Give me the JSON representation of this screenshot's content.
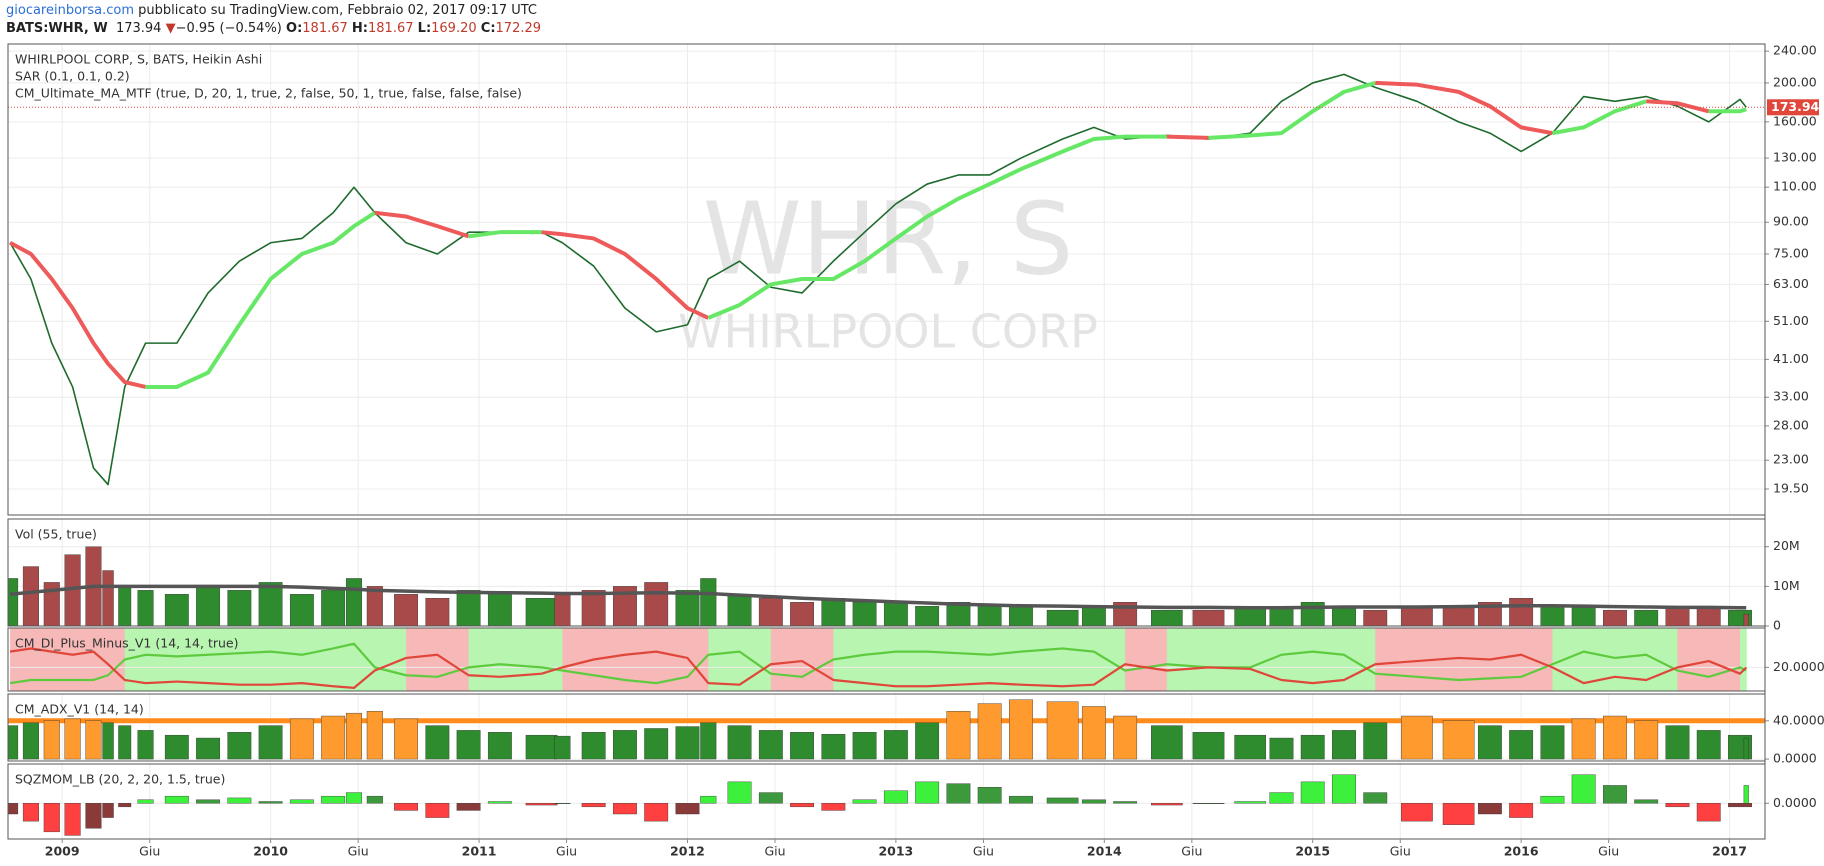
{
  "header": {
    "site": "giocareinborsa.com",
    "published": "pubblicato su TradingView.com, Febbraio 02, 2017 09:17 UTC",
    "symbol": "BATS:WHR, W",
    "price": "173.94",
    "arrow": "▼",
    "change": "−0.95 (−0.54%)",
    "open_label": "O:",
    "open": "181.67",
    "high_label": "H:",
    "high": "181.67",
    "low_label": "L:",
    "low": "169.20",
    "close_label": "C:",
    "close": "172.29"
  },
  "chart_data": {
    "type": "multi-pane",
    "x": [
      2008.75,
      2008.85,
      2008.95,
      2009.05,
      2009.15,
      2009.22,
      2009.3,
      2009.4,
      2009.55,
      2009.7,
      2009.85,
      2010.0,
      2010.15,
      2010.3,
      2010.4,
      2010.5,
      2010.65,
      2010.8,
      2010.95,
      2011.1,
      2011.3,
      2011.4,
      2011.55,
      2011.7,
      2011.85,
      2012.0,
      2012.1,
      2012.25,
      2012.4,
      2012.55,
      2012.7,
      2012.85,
      2013.0,
      2013.15,
      2013.3,
      2013.45,
      2013.6,
      2013.8,
      2013.95,
      2014.1,
      2014.3,
      2014.5,
      2014.7,
      2014.85,
      2015.0,
      2015.15,
      2015.3,
      2015.5,
      2015.7,
      2015.85,
      2016.0,
      2016.15,
      2016.3,
      2016.45,
      2016.6,
      2016.75,
      2016.9,
      2017.05,
      2017.08
    ],
    "xlim": [
      2008.74,
      2017.17
    ],
    "xticks": [
      2009,
      {
        "value": 2009.42,
        "label": "Giu"
      },
      2010,
      {
        "value": 2010.42,
        "label": "Giu"
      },
      2011,
      {
        "value": 2011.42,
        "label": "Giu"
      },
      2012,
      {
        "value": 2012.42,
        "label": "Giu"
      },
      2013,
      {
        "value": 2013.42,
        "label": "Giu"
      },
      2014,
      {
        "value": 2014.42,
        "label": "Giu"
      },
      2015,
      {
        "value": 2015.42,
        "label": "Giu"
      },
      2016,
      {
        "value": 2016.42,
        "label": "Giu"
      },
      2017
    ],
    "grid": true,
    "panes": [
      {
        "type": "line",
        "labels": [
          "WHIRLPOOL CORP, S, BATS, Heikin Ashi",
          "SAR (0.1, 0.1, 0.2)",
          "CM_Ultimate_MA_MTF (true, D, 20, 1, true, 2, false, 50, 1, true, false, false, false)"
        ],
        "watermark": [
          "WHR, S",
          "WHIRLPOOL CORP"
        ],
        "log": true,
        "ylim": [
          16.8,
          250
        ],
        "last_label": true,
        "last_color": "#e0463a",
        "yticks": [
          {
            "value": 19.5,
            "label": "19.50"
          },
          {
            "value": 23,
            "label": "23.00"
          },
          {
            "value": 28,
            "label": "28.00"
          },
          {
            "value": 33,
            "label": "33.00"
          },
          {
            "value": 41,
            "label": "41.00"
          },
          {
            "value": 51,
            "label": "51.00"
          },
          {
            "value": 63,
            "label": "63.00"
          },
          {
            "value": 75,
            "label": "75.00"
          },
          {
            "value": 90,
            "label": "90.00"
          },
          {
            "value": 110,
            "label": "110.00"
          },
          {
            "value": 130,
            "label": "130.00"
          },
          {
            "value": 160,
            "label": "160.00"
          },
          {
            "value": 200,
            "label": "200.00"
          },
          {
            "value": 240,
            "label": "240.00"
          }
        ],
        "series": [
          {
            "color": "#1f6b2e",
            "values": [
              80,
              65,
              45,
              35,
              22,
              20,
              35,
              45,
              45,
              60,
              72,
              80,
              82,
              95,
              110,
              95,
              80,
              75,
              85,
              85,
              85,
              80,
              70,
              55,
              48,
              50,
              65,
              72,
              62,
              60,
              72,
              85,
              100,
              112,
              118,
              118,
              130,
              145,
              155,
              145,
              148,
              145,
              150,
              180,
              200,
              210,
              195,
              180,
              160,
              150,
              135,
              150,
              185,
              180,
              185,
              175,
              160,
              182,
              173.94
            ]
          },
          {
            "up_color": "#66e866",
            "down_color": "#ee5a5a",
            "values": [
              80,
              75,
              65,
              55,
              45,
              40,
              36,
              35,
              35,
              38,
              50,
              65,
              75,
              80,
              88,
              95,
              93,
              88,
              83,
              85,
              85,
              84,
              82,
              75,
              65,
              55,
              52,
              56,
              63,
              65,
              65,
              72,
              82,
              93,
              103,
              112,
              122,
              135,
              145,
              147,
              147,
              146,
              148,
              150,
              170,
              190,
              200,
              198,
              190,
              175,
              155,
              150,
              155,
              170,
              180,
              178,
              170,
              170,
              172
            ]
          }
        ]
      },
      {
        "type": "bar",
        "labels": [
          "Vol (55, true)"
        ],
        "ylim": [
          0,
          27000000
        ],
        "yticks": [
          0,
          {
            "value": 10000000,
            "label": "10M"
          },
          {
            "value": 20000000,
            "label": "20M"
          }
        ],
        "series": [
          {
            "up_color": "#2e8b2e",
            "down_color": "#a84a4a",
            "values": [
              12000000,
              15000000,
              11000000,
              18000000,
              20000000,
              14000000,
              10000000,
              9000000,
              8000000,
              10000000,
              9000000,
              11000000,
              8000000,
              9000000,
              12000000,
              10000000,
              8000000,
              7000000,
              9000000,
              8000000,
              7000000,
              8000000,
              9000000,
              10000000,
              11000000,
              9000000,
              12000000,
              8000000,
              7000000,
              6000000,
              7000000,
              6000000,
              6000000,
              5000000,
              6000000,
              5000000,
              5000000,
              4000000,
              5000000,
              6000000,
              4000000,
              4000000,
              5000000,
              5000000,
              6000000,
              5000000,
              4000000,
              5000000,
              5000000,
              6000000,
              7000000,
              5000000,
              5000000,
              4000000,
              4000000,
              5000000,
              5000000,
              4000000,
              3000000
            ]
          },
          {
            "type": "line",
            "color": "#555555",
            "values": [
              8000000,
              8500000,
              9000000,
              9500000,
              10000000,
              10000000,
              10000000,
              10000000,
              10000000,
              10000000,
              10000000,
              10000000,
              9800000,
              9500000,
              9300000,
              9000000,
              8800000,
              8600000,
              8500000,
              8400000,
              8300000,
              8200000,
              8200000,
              8300000,
              8400000,
              8300000,
              8200000,
              7800000,
              7400000,
              7000000,
              6700000,
              6400000,
              6100000,
              5800000,
              5500000,
              5300000,
              5100000,
              5000000,
              4900000,
              4800000,
              4700000,
              4700000,
              4600000,
              4600000,
              4700000,
              4800000,
              4800000,
              4800000,
              4900000,
              5000000,
              5100000,
              5100000,
              5000000,
              4900000,
              4800000,
              4700000,
              4700000,
              4600000,
              4600000
            ]
          }
        ]
      },
      {
        "type": "line",
        "labels": [
          "CM_DI_Plus_Minus_V1 (14, 14, true)"
        ],
        "ylim": [
          5,
          45
        ],
        "yticks": [
          {
            "value": 20,
            "label": "20.0000"
          }
        ],
        "background": {
          "up": "#b8f5b0",
          "down": "#f7b8b8"
        },
        "series": [
          {
            "color": "#5ecb3e",
            "values": [
              10,
              12,
              12,
              12,
              12,
              15,
              25,
              28,
              27,
              28,
              29,
              30,
              28,
              32,
              35,
              20,
              15,
              14,
              20,
              22,
              20,
              18,
              15,
              12,
              10,
              14,
              28,
              30,
              16,
              14,
              25,
              28,
              30,
              30,
              29,
              28,
              30,
              32,
              30,
              18,
              22,
              20,
              20,
              28,
              30,
              28,
              16,
              14,
              12,
              13,
              14,
              22,
              30,
              26,
              28,
              18,
              14,
              20,
              18
            ]
          },
          {
            "color": "#e0463a",
            "values": [
              30,
              32,
              30,
              28,
              30,
              22,
              12,
              10,
              11,
              10,
              9,
              9,
              10,
              8,
              7,
              18,
              26,
              28,
              15,
              14,
              16,
              20,
              25,
              28,
              30,
              26,
              10,
              9,
              22,
              24,
              12,
              10,
              8,
              8,
              9,
              10,
              9,
              8,
              9,
              22,
              18,
              20,
              19,
              12,
              10,
              12,
              22,
              24,
              26,
              25,
              28,
              20,
              10,
              14,
              12,
              20,
              24,
              16,
              20
            ]
          }
        ]
      },
      {
        "type": "bar",
        "labels": [
          "CM_ADX_V1 (14, 14)"
        ],
        "ylim": [
          -2,
          68
        ],
        "yticks": [
          {
            "value": 0,
            "label": "0.0000"
          },
          {
            "value": 40,
            "label": "40.0000"
          }
        ],
        "levels": [
          40
        ],
        "level_color": "#ff8c1a",
        "series": [
          {
            "up_color": "#ff9a2e",
            "down_color": "#2e8b2e",
            "values": [
              35,
              38,
              40,
              42,
              40,
              38,
              35,
              30,
              25,
              22,
              28,
              35,
              42,
              45,
              48,
              50,
              42,
              35,
              30,
              28,
              25,
              24,
              28,
              30,
              32,
              34,
              38,
              35,
              30,
              28,
              26,
              28,
              30,
              38,
              50,
              58,
              62,
              60,
              55,
              45,
              35,
              28,
              25,
              22,
              25,
              30,
              38,
              45,
              40,
              35,
              30,
              35,
              42,
              45,
              40,
              35,
              30,
              25,
              22
            ]
          }
        ]
      },
      {
        "type": "bar",
        "labels": [
          "SQZMOM_LB (20, 2, 20, 1.5, true)"
        ],
        "ylim": [
          -1.0,
          1.1
        ],
        "yticks": [
          {
            "value": 0,
            "label": "0.0000"
          }
        ],
        "colors": {
          "pos_up": "#3cf03c",
          "pos_down": "#3c9a3c",
          "neg_down": "#ff4040",
          "neg_up": "#8b3a3a"
        },
        "series": [
          {
            "values": [
              -0.3,
              -0.5,
              -0.8,
              -0.9,
              -0.7,
              -0.4,
              -0.1,
              0.1,
              0.2,
              0.1,
              0.15,
              0.05,
              0.1,
              0.2,
              0.3,
              0.2,
              -0.2,
              -0.4,
              -0.2,
              0.05,
              -0.05,
              0.0,
              -0.1,
              -0.3,
              -0.5,
              -0.3,
              0.2,
              0.6,
              0.3,
              -0.1,
              -0.2,
              0.1,
              0.35,
              0.6,
              0.55,
              0.45,
              0.2,
              0.15,
              0.1,
              0.05,
              -0.05,
              0.0,
              0.05,
              0.3,
              0.6,
              0.8,
              0.3,
              -0.5,
              -0.6,
              -0.3,
              -0.4,
              0.2,
              0.8,
              0.5,
              0.1,
              -0.1,
              -0.5,
              -0.1,
              0.5
            ]
          }
        ]
      }
    ]
  }
}
